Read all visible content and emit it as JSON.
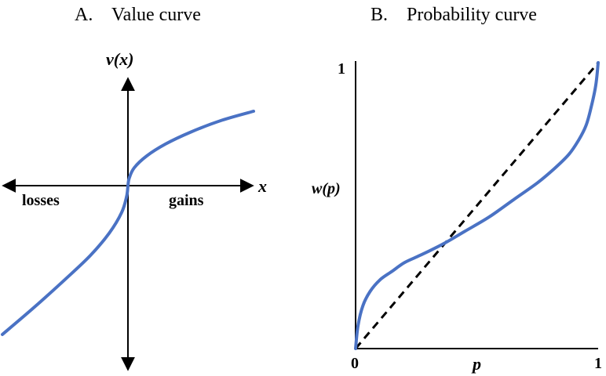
{
  "chart_data": [
    {
      "type": "line",
      "panel_label": "A.",
      "title": "Value curve",
      "xlabel": "x",
      "ylabel": "v(x)",
      "region_labels": {
        "left": "losses",
        "right": "gains"
      },
      "grid": false,
      "axes": "centered-cross-with-arrows",
      "series": [
        {
          "x": [
            -1.0,
            -0.75,
            -0.5,
            -0.3,
            -0.15,
            -0.05,
            -0.01,
            0,
            0.01,
            0.05,
            0.15,
            0.3,
            0.5,
            0.75,
            1.0
          ],
          "y": [
            -1.0,
            -0.82,
            -0.63,
            -0.47,
            -0.32,
            -0.18,
            -0.07,
            0,
            0.05,
            0.12,
            0.2,
            0.28,
            0.36,
            0.44,
            0.5
          ],
          "color": "#4a72c4"
        }
      ]
    },
    {
      "type": "line",
      "panel_label": "B.",
      "title": "Probability curve",
      "xlabel": "p",
      "ylabel": "w(p)",
      "xlim": [
        0,
        1
      ],
      "ylim": [
        0,
        1
      ],
      "x_tick_labels": [
        "0",
        "1"
      ],
      "y_tick_labels": [
        "1"
      ],
      "grid": false,
      "series": [
        {
          "x": [
            0,
            0.01,
            0.03,
            0.06,
            0.1,
            0.15,
            0.2,
            0.25,
            0.3,
            0.37,
            0.45,
            0.55,
            0.65,
            0.75,
            0.82,
            0.88,
            0.92,
            0.95,
            0.97,
            0.99,
            1.0
          ],
          "y": [
            0,
            0.08,
            0.15,
            0.2,
            0.24,
            0.27,
            0.3,
            0.32,
            0.34,
            0.37,
            0.41,
            0.46,
            0.52,
            0.58,
            0.63,
            0.68,
            0.73,
            0.78,
            0.84,
            0.92,
            1.0
          ],
          "color": "#4a72c4"
        },
        {
          "x": [
            0,
            1
          ],
          "y": [
            0,
            1
          ],
          "style": "dashed",
          "color": "#000000"
        }
      ]
    }
  ]
}
